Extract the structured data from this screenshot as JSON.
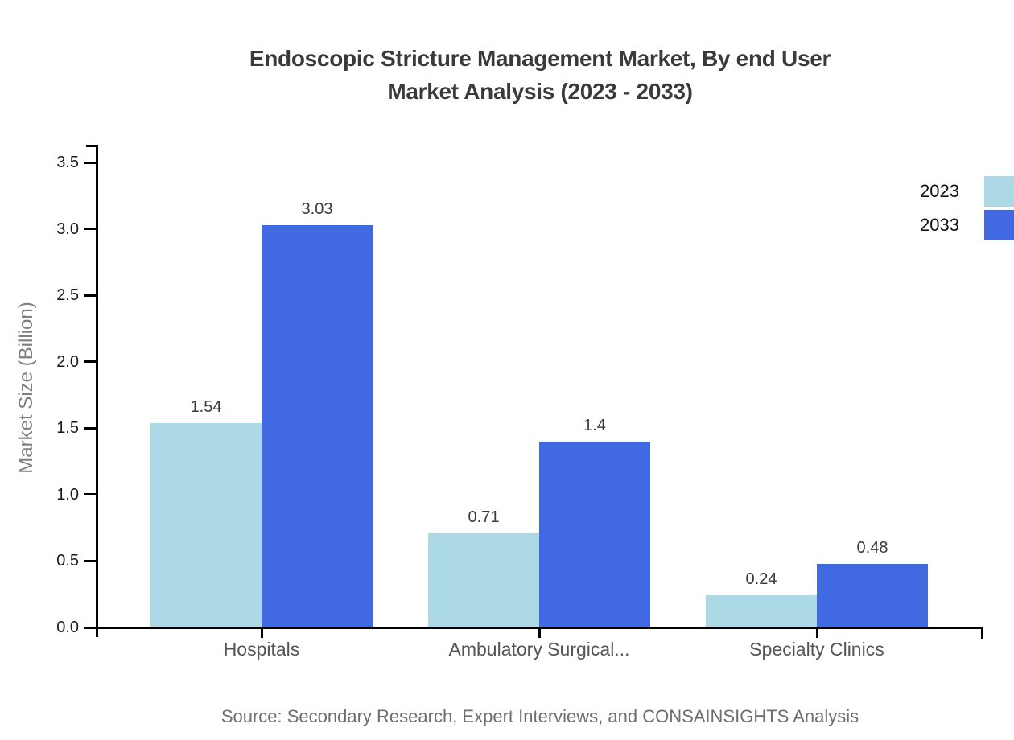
{
  "title": {
    "line1": "Endoscopic Stricture Management Market, By end User",
    "line2": "Market Analysis (2023 - 2033)"
  },
  "y_axis": {
    "label": "Market Size (Billion)"
  },
  "source": "Source: Secondary Research, Expert Interviews, and CONSAINSIGHTS Analysis",
  "colors": {
    "series_2023": "#ADD8E6",
    "series_2033": "#4169E1",
    "axis": "#000000",
    "title_text": "#3a3a3a",
    "category_text": "#555555",
    "source_text": "#6e6e6e"
  },
  "chart_data": {
    "type": "bar",
    "title": "Endoscopic Stricture Management Market, By end User Market Analysis (2023 - 2033)",
    "categories": [
      "Hospitals",
      "Ambulatory Surgical...",
      "Specialty Clinics"
    ],
    "series": [
      {
        "name": "2023",
        "color": "#ADD8E6",
        "values": [
          1.54,
          0.71,
          0.24
        ],
        "labels": [
          "1.54",
          "0.71",
          "0.24"
        ]
      },
      {
        "name": "2033",
        "color": "#4169E1",
        "values": [
          3.03,
          1.4,
          0.48
        ],
        "labels": [
          "3.03",
          "1.4",
          "0.48"
        ]
      }
    ],
    "xlabel": "",
    "ylabel": "Market Size (Billion)",
    "ylim": [
      0,
      3.5
    ],
    "yticks": [
      0.0,
      0.5,
      1.0,
      1.5,
      2.0,
      2.5,
      3.0,
      3.5
    ],
    "ytick_labels": [
      "0.0",
      "0.5",
      "1.0",
      "1.5",
      "2.0",
      "2.5",
      "3.0",
      "3.5"
    ],
    "grid": false,
    "legend_position": "top-right"
  }
}
